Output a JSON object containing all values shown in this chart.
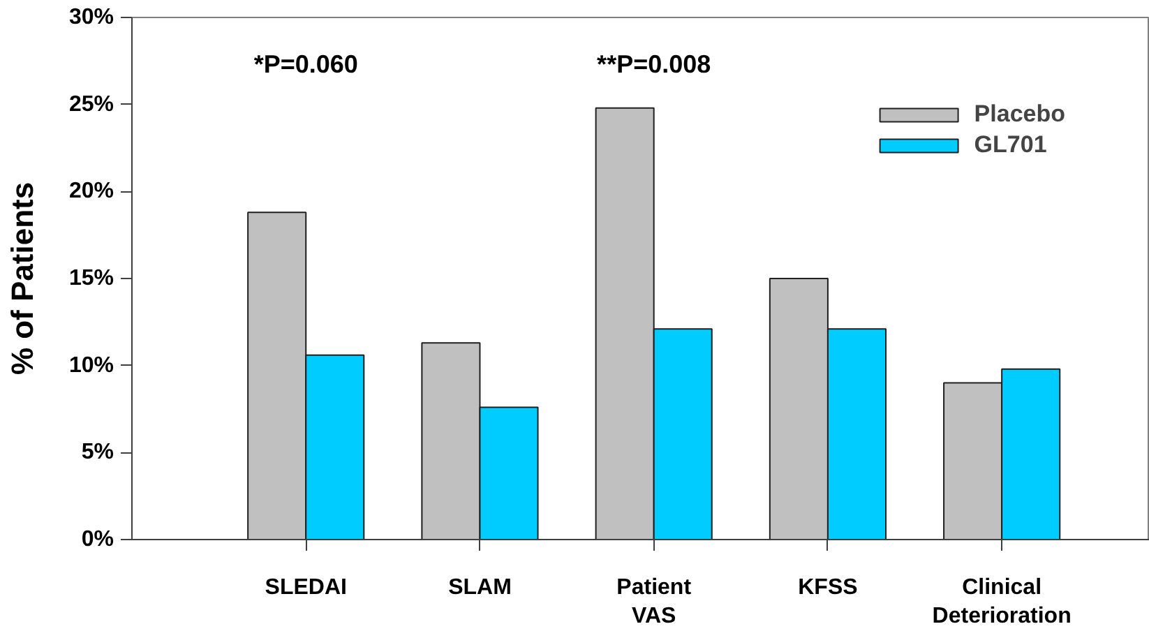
{
  "chart_data": {
    "type": "bar",
    "ylabel": "% of Patients",
    "categories": [
      "SLEDAI",
      "SLAM",
      "Patient\nVAS",
      "KFSS",
      "Clinical\nDeterioration"
    ],
    "series": [
      {
        "name": "Placebo",
        "color": "#c0c0c0",
        "values": [
          18.8,
          11.3,
          24.8,
          15.0,
          9.0
        ]
      },
      {
        "name": "GL701",
        "color": "#00ccff",
        "values": [
          10.6,
          7.6,
          12.1,
          12.1,
          9.8
        ]
      }
    ],
    "ylim": [
      0,
      30
    ],
    "yticks": [
      {
        "value": 0,
        "label": "0%"
      },
      {
        "value": 5,
        "label": "5%"
      },
      {
        "value": 10,
        "label": "10%"
      },
      {
        "value": 15,
        "label": "15%"
      },
      {
        "value": 20,
        "label": "20%"
      },
      {
        "value": 25,
        "label": "25%"
      },
      {
        "value": 30,
        "label": "30%"
      }
    ],
    "annotations": [
      "*P=0.060",
      "**P=0.008"
    ],
    "grid": false,
    "legend": "top right"
  }
}
